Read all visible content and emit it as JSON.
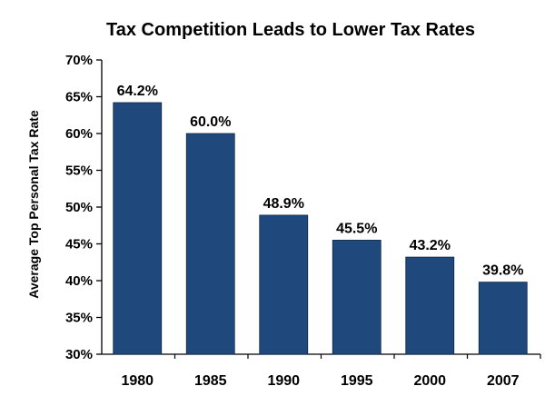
{
  "chart_data": {
    "type": "bar",
    "title": "Tax Competition Leads to Lower Tax Rates",
    "xlabel": "",
    "ylabel": "Average Top Personal Tax Rate",
    "categories": [
      "1980",
      "1985",
      "1990",
      "1995",
      "2000",
      "2007"
    ],
    "values": [
      64.2,
      60.0,
      48.9,
      45.5,
      43.2,
      39.8
    ],
    "value_labels": [
      "64.2%",
      "60.0%",
      "48.9%",
      "45.5%",
      "43.2%",
      "39.8%"
    ],
    "ylim": [
      30,
      70
    ],
    "yticks": [
      30,
      35,
      40,
      45,
      50,
      55,
      60,
      65,
      70
    ],
    "ytick_labels": [
      "30%",
      "35%",
      "40%",
      "45%",
      "50%",
      "55%",
      "60%",
      "65%",
      "70%"
    ],
    "bar_color": "#1F497D",
    "grid": false,
    "legend": "none"
  }
}
